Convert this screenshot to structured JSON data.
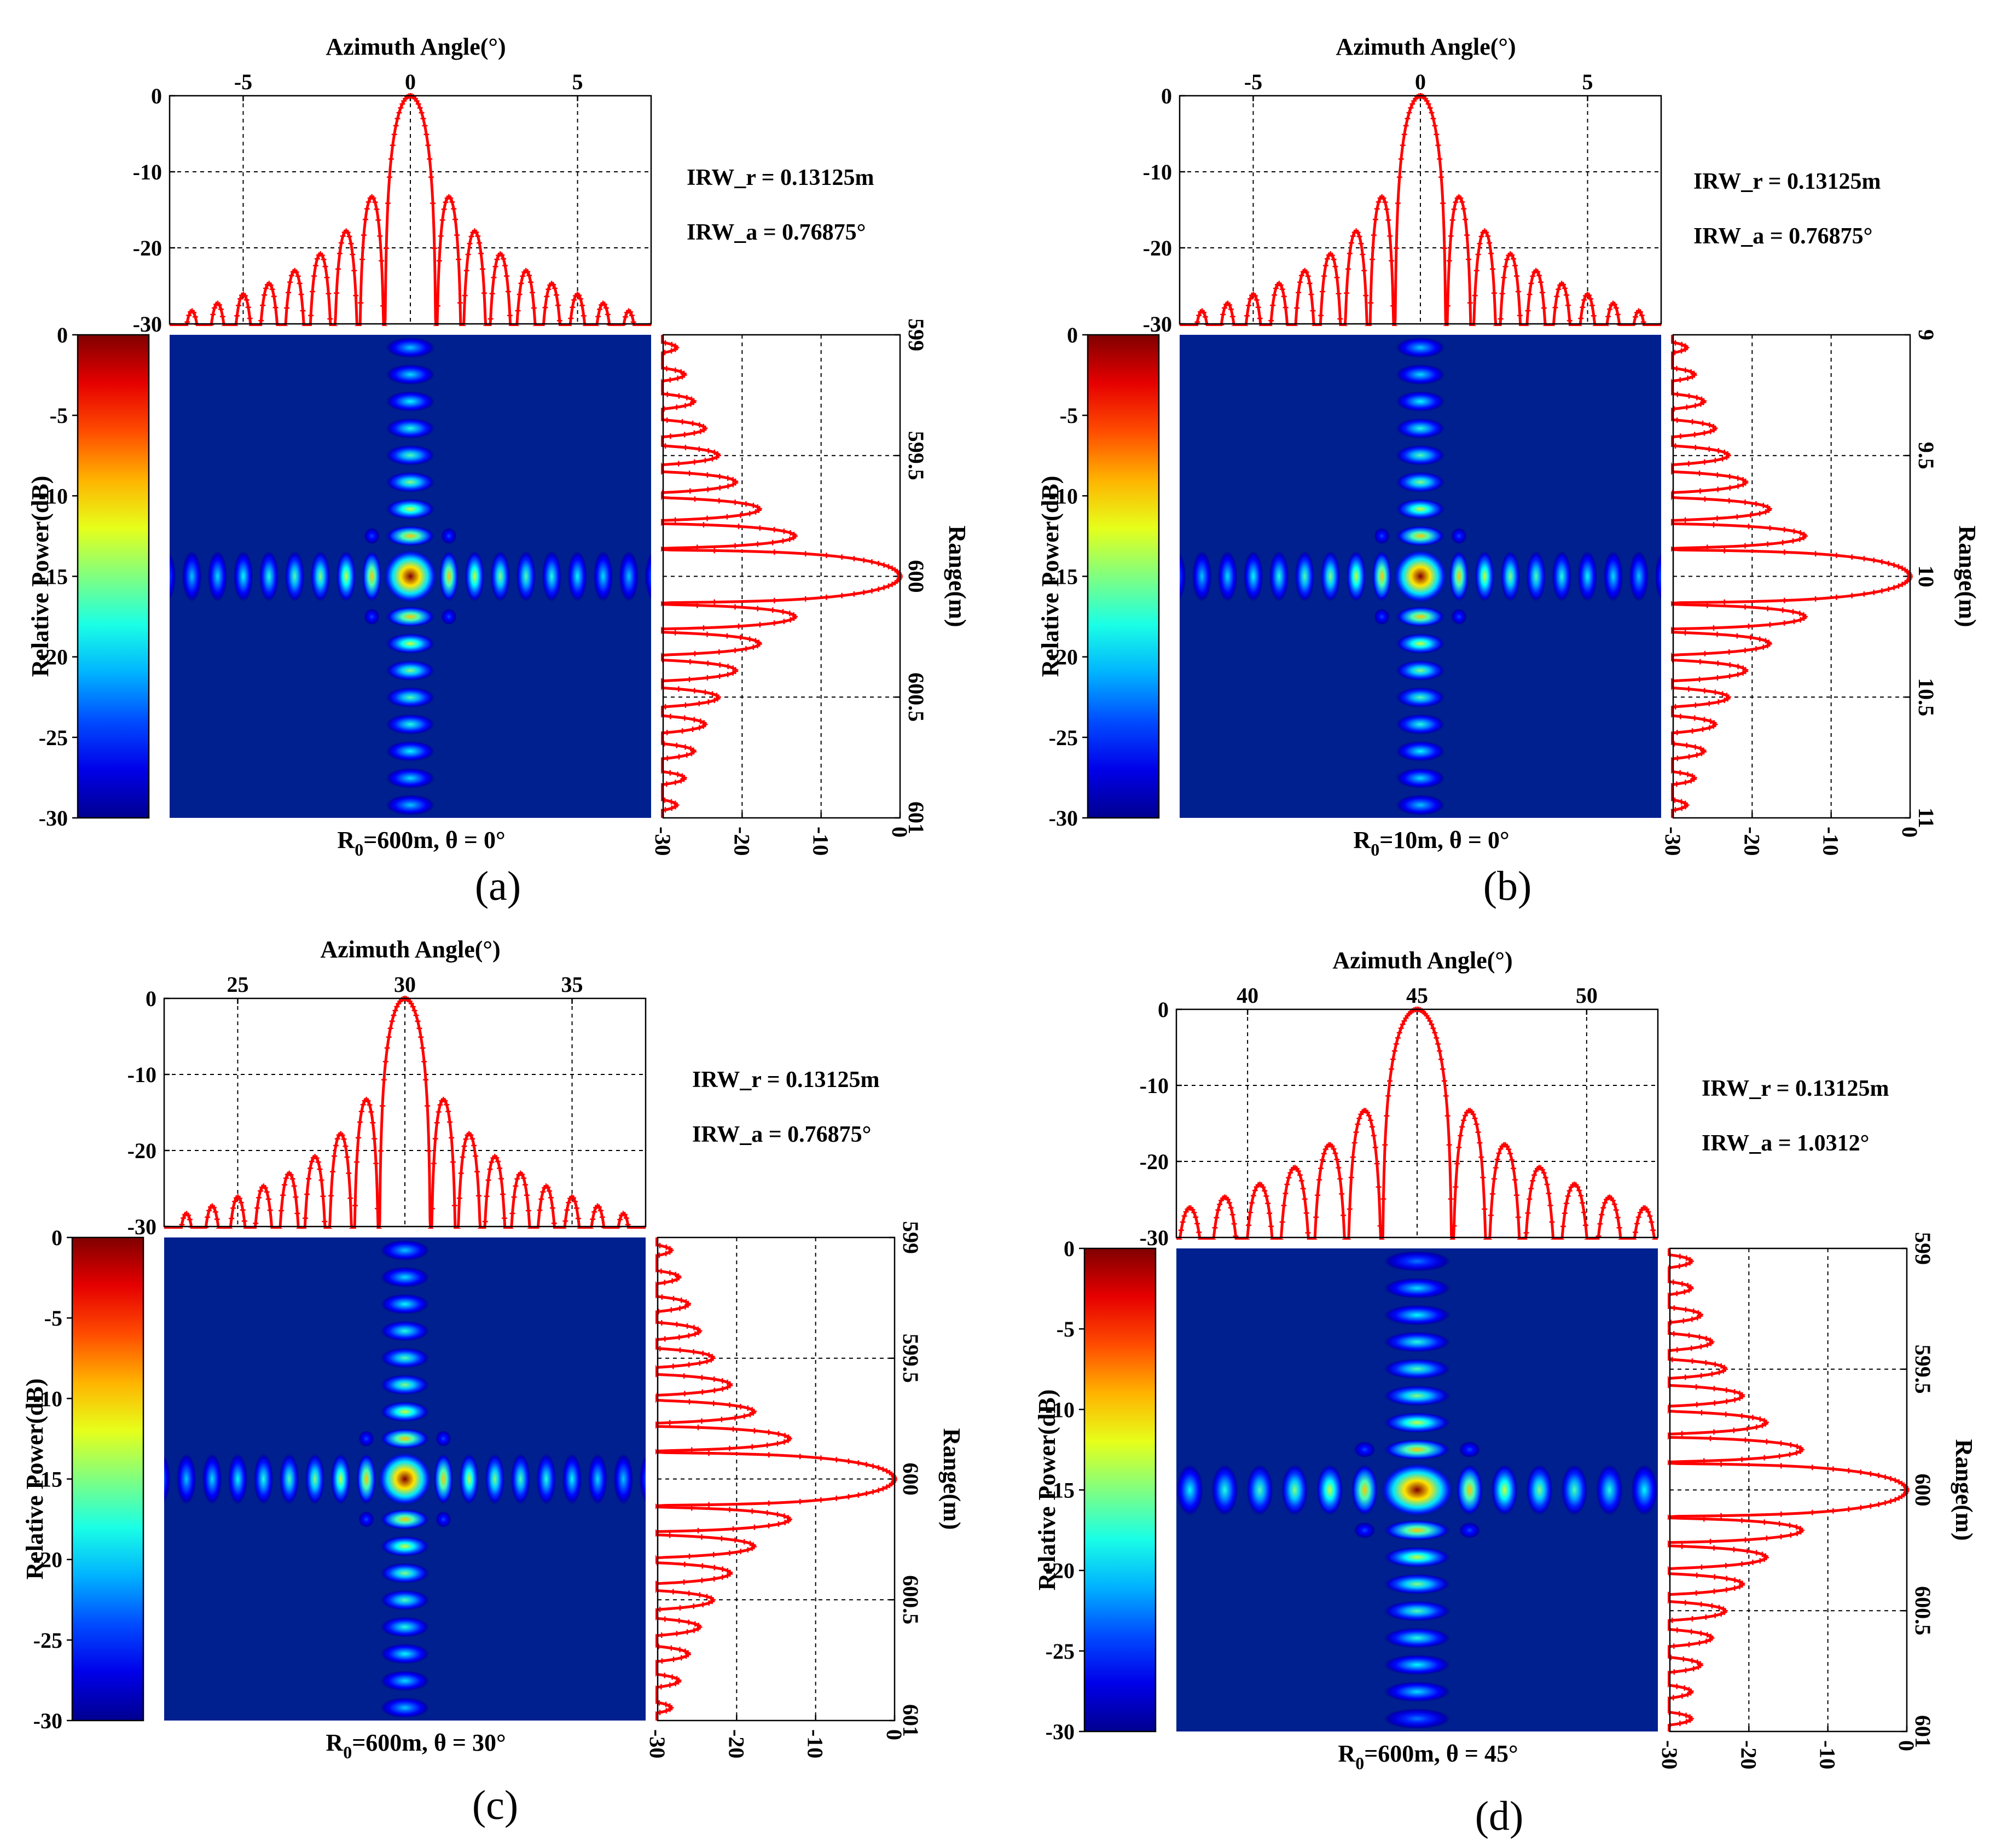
{
  "colors": {
    "curve": "#ff0000",
    "background": "#00208f",
    "colormap": [
      "#00008f",
      "#0000ff",
      "#00ffff",
      "#ffff00",
      "#ff0000",
      "#800000"
    ]
  },
  "chart_data": [
    {
      "letter": "(a)",
      "type": "heatmap",
      "colormap": "jet",
      "azimuth_axis": {
        "label": "Azimuth Angle(°)",
        "min": -7.2,
        "max": 7.2,
        "ticks": [
          "-5",
          "0",
          "5"
        ],
        "tick_values": [
          -5,
          0,
          5
        ],
        "center": 0
      },
      "azimuth_power_axis": {
        "min": -30,
        "max": 0,
        "ticks": [
          "0",
          "-10",
          "-20",
          "-30"
        ],
        "tick_values": [
          0,
          -10,
          -20,
          -30
        ]
      },
      "range_axis": {
        "label": "Range(m)",
        "min": 599,
        "max": 601,
        "ticks": [
          "599",
          "599.5",
          "600",
          "600.5",
          "601"
        ],
        "tick_values": [
          599,
          599.5,
          600,
          600.5,
          601
        ],
        "center": 600
      },
      "range_power_axis": {
        "min": -30,
        "max": 0,
        "ticks": [
          "-30",
          "-20",
          "-10",
          "0"
        ],
        "tick_values": [
          -30,
          -20,
          -10,
          0
        ]
      },
      "colorbar": {
        "label": "Relative Power(dB)",
        "min": -30,
        "max": 0,
        "ticks": [
          "0",
          "-5",
          "-10",
          "-15",
          "-20",
          "-25",
          "-30"
        ],
        "tick_values": [
          0,
          -5,
          -10,
          -15,
          -20,
          -25,
          -30
        ]
      },
      "main_lobe_width_deg": 0.76875,
      "sidelobe_peaks_db": [
        -13.3,
        -17.8,
        -20.8,
        -23.0,
        -24.7,
        -26.1,
        -27.3,
        -28.3,
        -29.2,
        -30
      ],
      "caption": {
        "prefix": "R",
        "subscript": "0",
        "suffix": "=600m,  θ = 0°"
      },
      "irw_r": "IRW_r = 0.13125m",
      "irw_a": "IRW_a = 0.76875°"
    },
    {
      "letter": "(b)",
      "type": "heatmap",
      "colormap": "jet",
      "azimuth_axis": {
        "label": "Azimuth Angle(°)",
        "min": -7.2,
        "max": 7.2,
        "ticks": [
          "-5",
          "0",
          "5"
        ],
        "tick_values": [
          -5,
          0,
          5
        ],
        "center": 0
      },
      "azimuth_power_axis": {
        "min": -30,
        "max": 0,
        "ticks": [
          "0",
          "-10",
          "-20",
          "-30"
        ],
        "tick_values": [
          0,
          -10,
          -20,
          -30
        ]
      },
      "range_axis": {
        "label": "Range(m)",
        "min": 9,
        "max": 11,
        "ticks": [
          "9",
          "9.5",
          "10",
          "10.5",
          "11"
        ],
        "tick_values": [
          9,
          9.5,
          10,
          10.5,
          11
        ],
        "center": 10
      },
      "range_power_axis": {
        "min": -30,
        "max": 0,
        "ticks": [
          "-30",
          "-20",
          "-10",
          "0"
        ],
        "tick_values": [
          -30,
          -20,
          -10,
          0
        ]
      },
      "colorbar": {
        "label": "Relative Power(dB)",
        "min": -30,
        "max": 0,
        "ticks": [
          "0",
          "-5",
          "-10",
          "-15",
          "-20",
          "-25",
          "-30"
        ],
        "tick_values": [
          0,
          -5,
          -10,
          -15,
          -20,
          -25,
          -30
        ]
      },
      "main_lobe_width_deg": 0.76875,
      "sidelobe_peaks_db": [
        -13.3,
        -17.8,
        -20.8,
        -23.0,
        -24.7,
        -26.1,
        -27.3,
        -28.3,
        -29.2,
        -30
      ],
      "caption": {
        "prefix": "R",
        "subscript": "0",
        "suffix": "=10m,  θ = 0°"
      },
      "irw_r": "IRW_r = 0.13125m",
      "irw_a": "IRW_a = 0.76875°"
    },
    {
      "letter": "(c)",
      "type": "heatmap",
      "colormap": "jet",
      "azimuth_axis": {
        "label": "Azimuth Angle(°)",
        "min": 22.8,
        "max": 37.2,
        "ticks": [
          "25",
          "30",
          "35"
        ],
        "tick_values": [
          25,
          30,
          35
        ],
        "center": 30
      },
      "azimuth_power_axis": {
        "min": -30,
        "max": 0,
        "ticks": [
          "0",
          "-10",
          "-20",
          "-30"
        ],
        "tick_values": [
          0,
          -10,
          -20,
          -30
        ]
      },
      "range_axis": {
        "label": "Range(m)",
        "min": 599,
        "max": 601,
        "ticks": [
          "599",
          "599.5",
          "600",
          "600.5",
          "601"
        ],
        "tick_values": [
          599,
          599.5,
          600,
          600.5,
          601
        ],
        "center": 600
      },
      "range_power_axis": {
        "min": -30,
        "max": 0,
        "ticks": [
          "-30",
          "-20",
          "-10",
          "0"
        ],
        "tick_values": [
          -30,
          -20,
          -10,
          0
        ]
      },
      "colorbar": {
        "label": "Relative Power(dB)",
        "min": -30,
        "max": 0,
        "ticks": [
          "0",
          "-5",
          "-10",
          "-15",
          "-20",
          "-25",
          "-30"
        ],
        "tick_values": [
          0,
          -5,
          -10,
          -15,
          -20,
          -25,
          -30
        ]
      },
      "main_lobe_width_deg": 0.76875,
      "sidelobe_peaks_db": [
        -13.3,
        -17.8,
        -20.8,
        -23.0,
        -24.7,
        -26.1,
        -27.3,
        -28.3,
        -29.2,
        -30
      ],
      "caption": {
        "prefix": "R",
        "subscript": "0",
        "suffix": "=600m,  θ = 30°"
      },
      "irw_r": "IRW_r = 0.13125m",
      "irw_a": "IRW_a = 0.76875°"
    },
    {
      "letter": "(d)",
      "type": "heatmap",
      "colormap": "jet",
      "azimuth_axis": {
        "label": "Azimuth Angle(°)",
        "min": 37.9,
        "max": 52.1,
        "ticks": [
          "40",
          "45",
          "50"
        ],
        "tick_values": [
          40,
          45,
          50
        ],
        "center": 45
      },
      "azimuth_power_axis": {
        "min": -30,
        "max": 0,
        "ticks": [
          "0",
          "-10",
          "-20",
          "-30"
        ],
        "tick_values": [
          0,
          -10,
          -20,
          -30
        ]
      },
      "range_axis": {
        "label": "Range(m)",
        "min": 599,
        "max": 601,
        "ticks": [
          "599",
          "599.5",
          "600",
          "600.5",
          "601"
        ],
        "tick_values": [
          599,
          599.5,
          600,
          600.5,
          601
        ],
        "center": 600
      },
      "range_power_axis": {
        "min": -30,
        "max": 0,
        "ticks": [
          "-30",
          "-20",
          "-10",
          "0"
        ],
        "tick_values": [
          -30,
          -20,
          -10,
          0
        ]
      },
      "colorbar": {
        "label": "Relative Power(dB)",
        "min": -30,
        "max": 0,
        "ticks": [
          "0",
          "-5",
          "-10",
          "-15",
          "-20",
          "-25",
          "-30"
        ],
        "tick_values": [
          0,
          -5,
          -10,
          -15,
          -20,
          -25,
          -30
        ]
      },
      "main_lobe_width_deg": 1.0312,
      "sidelobe_peaks_db": [
        -13.3,
        -17.8,
        -20.8,
        -23.0,
        -24.7,
        -26.1,
        -27.3
      ],
      "caption": {
        "prefix": "R",
        "subscript": "0",
        "suffix": "=600m,  θ = 45°"
      },
      "irw_r": "IRW_r = 0.13125m",
      "irw_a": "IRW_a = 1.0312°"
    }
  ]
}
